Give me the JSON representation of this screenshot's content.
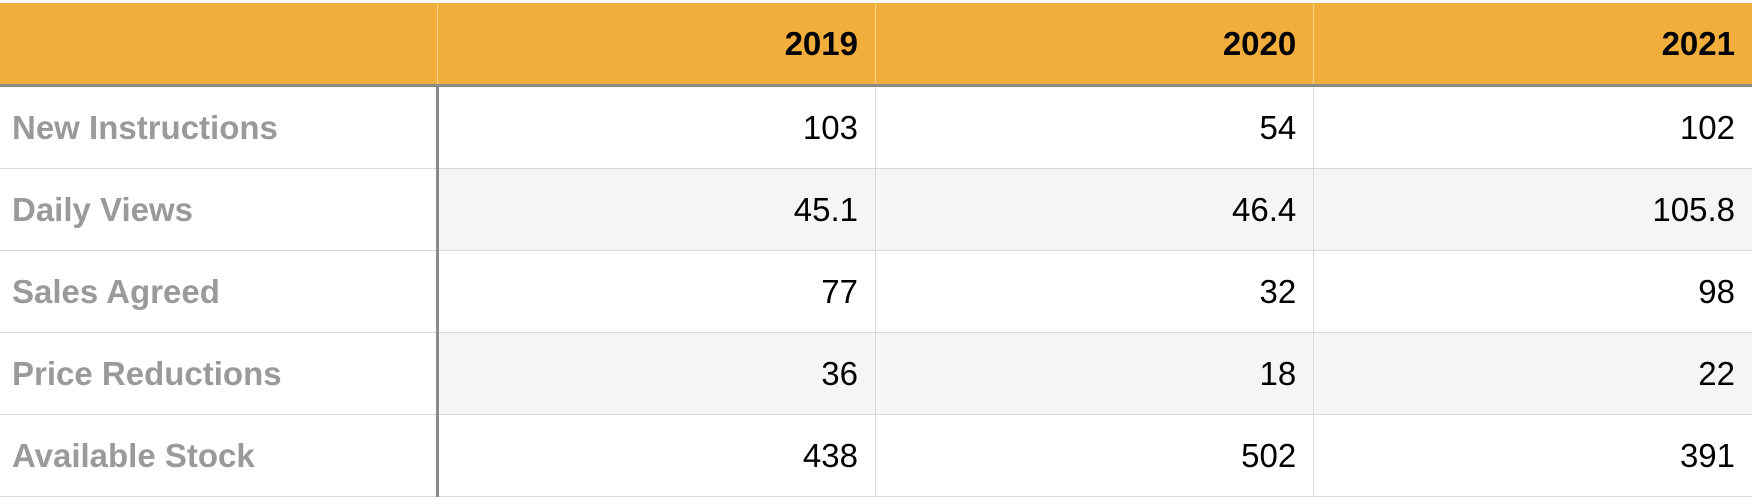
{
  "chart_data": {
    "type": "table",
    "columns": [
      "",
      "2019",
      "2020",
      "2021"
    ],
    "rows": [
      {
        "label": "New Instructions",
        "values": [
          "103",
          "54",
          "102"
        ]
      },
      {
        "label": "Daily Views",
        "values": [
          "45.1",
          "46.4",
          "105.8"
        ]
      },
      {
        "label": "Sales Agreed",
        "values": [
          "77",
          "32",
          "98"
        ]
      },
      {
        "label": "Price Reductions",
        "values": [
          "36",
          "18",
          "22"
        ]
      },
      {
        "label": "Available Stock",
        "values": [
          "438",
          "502",
          "391"
        ]
      }
    ]
  },
  "colors": {
    "header_background": "#f2ae3c",
    "row_label_text": "#9a9a9a",
    "alt_row_background": "#f5f5f5"
  }
}
